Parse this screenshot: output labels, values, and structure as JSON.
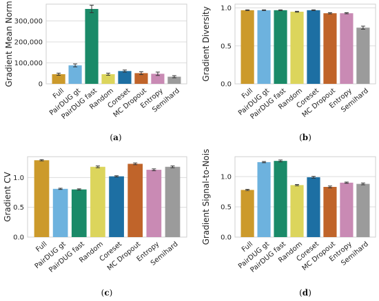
{
  "colors": {
    "Full": "#CC9A2B",
    "PairDUG gt": "#6DB2DE",
    "PairDUG fast": "#1A8A68",
    "Random": "#DCD55C",
    "Coreset": "#1D6FA3",
    "MC Dropout": "#C0642A",
    "Entropy": "#C98AB4",
    "Semihard": "#9B9B9B"
  },
  "chart_data": [
    {
      "type": "bar",
      "id": "a",
      "categories": [
        "Full",
        "PairDUG gt",
        "PairDUG fast",
        "Random",
        "Coreset",
        "MC Dropout",
        "Entropy",
        "Semihard"
      ],
      "values": [
        46000,
        88000,
        357000,
        46000,
        61000,
        51000,
        48000,
        34000
      ],
      "errors": [
        5000,
        7000,
        18000,
        5000,
        5000,
        7000,
        8000,
        5000
      ],
      "ylabel": "Gradient Mean Norm",
      "yticks": [
        0,
        100000,
        200000,
        300000
      ],
      "ytick_labels": [
        "0",
        "100,000",
        "200,000",
        "300,000"
      ],
      "ylim": [
        0,
        380000
      ],
      "grid": true,
      "caption": "a"
    },
    {
      "type": "bar",
      "id": "b",
      "categories": [
        "Full",
        "PairDUG gt",
        "PairDUG fast",
        "Random",
        "Coreset",
        "MC Dropout",
        "Entropy",
        "Semihard"
      ],
      "values": [
        0.97,
        0.97,
        0.97,
        0.95,
        0.97,
        0.93,
        0.93,
        0.74
      ],
      "errors": [
        0.005,
        0.005,
        0.005,
        0.006,
        0.005,
        0.008,
        0.007,
        0.02
      ],
      "ylabel": "Gradient Diversity",
      "yticks": [
        0.0,
        0.5,
        1.0
      ],
      "ytick_labels": [
        "0.0",
        "0.5",
        "1.0"
      ],
      "ylim": [
        0,
        1.05
      ],
      "grid": true,
      "caption": "b"
    },
    {
      "type": "bar",
      "id": "c",
      "categories": [
        "Full",
        "PairDUG gt",
        "PairDUG fast",
        "Random",
        "Coreset",
        "MC Dropout",
        "Entropy",
        "Semihard"
      ],
      "values": [
        1.29,
        0.81,
        0.8,
        1.18,
        1.02,
        1.23,
        1.13,
        1.18
      ],
      "errors": [
        0.01,
        0.01,
        0.01,
        0.015,
        0.01,
        0.015,
        0.015,
        0.015
      ],
      "ylabel": "Gradient CV",
      "yticks": [
        0.0,
        0.5,
        1.0
      ],
      "ytick_labels": [
        "0.0",
        "0.5",
        "1.0"
      ],
      "ylim": [
        0,
        1.35
      ],
      "grid": true,
      "caption": "c"
    },
    {
      "type": "bar",
      "id": "d",
      "categories": [
        "Full",
        "PairDUG gt",
        "PairDUG fast",
        "Random",
        "Coreset",
        "MC Dropout",
        "Entropy",
        "Semihard"
      ],
      "values": [
        0.78,
        1.24,
        1.26,
        0.86,
        0.99,
        0.83,
        0.9,
        0.88
      ],
      "errors": [
        0.01,
        0.01,
        0.015,
        0.01,
        0.015,
        0.015,
        0.01,
        0.015
      ],
      "ylabel": "Gradient Signal-to-Nois",
      "yticks": [
        0.0,
        0.5,
        1.0
      ],
      "ytick_labels": [
        "0.0",
        "0.5",
        "1.0"
      ],
      "ylim": [
        0,
        1.33
      ],
      "grid": true,
      "caption": "d"
    }
  ]
}
